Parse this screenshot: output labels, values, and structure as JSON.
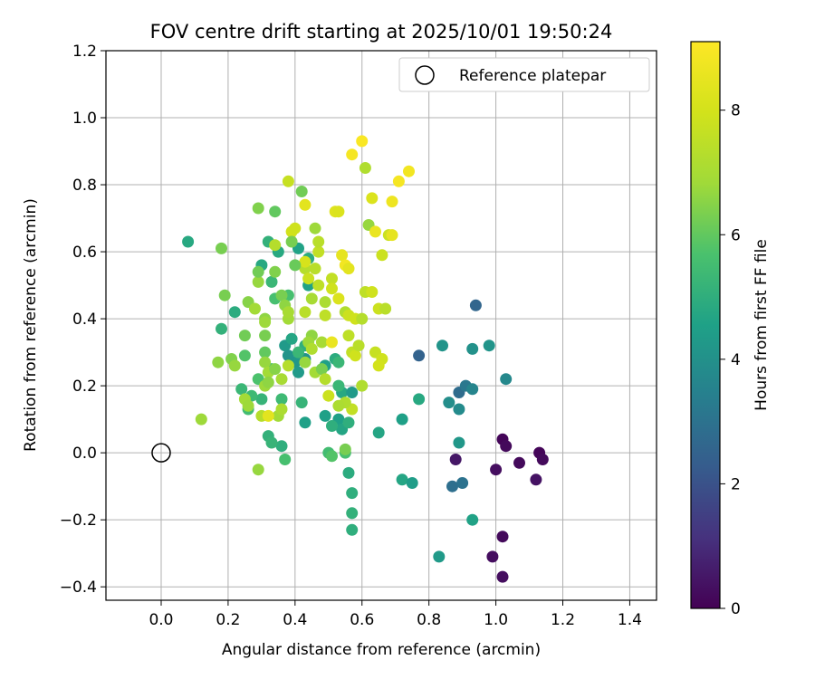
{
  "chart_data": {
    "type": "scatter",
    "title": "FOV centre drift starting at 2025/10/01 19:50:24",
    "xlabel": "Angular distance from reference (arcmin)",
    "ylabel": "Rotation from reference (arcmin)",
    "xlim": [
      -0.165,
      1.48
    ],
    "ylim": [
      -0.44,
      1.2
    ],
    "xticks": [
      "0.0",
      "0.2",
      "0.4",
      "0.6",
      "0.8",
      "1.0",
      "1.2",
      "1.4"
    ],
    "xtick_values": [
      0.0,
      0.2,
      0.4,
      0.6,
      0.8,
      1.0,
      1.2,
      1.4
    ],
    "yticks": [
      "−0.4",
      "−0.2",
      "0.0",
      "0.2",
      "0.4",
      "0.6",
      "0.8",
      "1.0",
      "1.2"
    ],
    "ytick_values": [
      -0.4,
      -0.2,
      0.0,
      0.2,
      0.4,
      0.6,
      0.8,
      1.0,
      1.2
    ],
    "grid": true,
    "legend": {
      "position": "top-right",
      "entries": [
        "Reference platepar"
      ]
    },
    "reference_point": {
      "x": 0.0,
      "y": 0.0
    },
    "colorbar": {
      "label": "Hours from first FF file",
      "range": [
        0,
        9.1
      ],
      "ticks": [
        "0",
        "2",
        "4",
        "6",
        "8"
      ],
      "tick_values": [
        0,
        2,
        4,
        6,
        8
      ],
      "colormap": "viridis"
    },
    "points": [
      [
        1.02,
        0.04,
        0.1
      ],
      [
        1.03,
        0.02,
        0.2
      ],
      [
        1.0,
        -0.05,
        0.3
      ],
      [
        1.07,
        -0.03,
        0.2
      ],
      [
        1.13,
        0.0,
        0.1
      ],
      [
        1.14,
        -0.02,
        0.2
      ],
      [
        1.12,
        -0.08,
        0.4
      ],
      [
        0.99,
        -0.31,
        0.3
      ],
      [
        1.02,
        -0.25,
        0.2
      ],
      [
        1.02,
        -0.37,
        0.3
      ],
      [
        0.88,
        -0.02,
        0.5
      ],
      [
        0.94,
        0.44,
        2.6
      ],
      [
        0.89,
        0.18,
        2.8
      ],
      [
        0.91,
        0.2,
        3.2
      ],
      [
        0.87,
        -0.1,
        2.9
      ],
      [
        0.9,
        -0.09,
        3.0
      ],
      [
        0.77,
        0.29,
        2.5
      ],
      [
        1.03,
        0.22,
        3.7
      ],
      [
        0.93,
        0.31,
        4.0
      ],
      [
        0.98,
        0.32,
        4.1
      ],
      [
        0.84,
        0.32,
        4.1
      ],
      [
        0.86,
        0.15,
        3.9
      ],
      [
        0.89,
        0.13,
        3.8
      ],
      [
        0.93,
        0.19,
        3.6
      ],
      [
        0.89,
        0.03,
        4.2
      ],
      [
        0.93,
        -0.2,
        4.6
      ],
      [
        0.83,
        -0.31,
        4.3
      ],
      [
        0.77,
        0.16,
        4.8
      ],
      [
        0.72,
        0.1,
        4.5
      ],
      [
        0.72,
        -0.08,
        4.7
      ],
      [
        0.75,
        -0.09,
        4.4
      ],
      [
        0.65,
        0.06,
        4.7
      ],
      [
        0.55,
        0.0,
        5.6
      ],
      [
        0.56,
        -0.06,
        4.9
      ],
      [
        0.57,
        -0.12,
        5.0
      ],
      [
        0.57,
        -0.18,
        5.1
      ],
      [
        0.57,
        -0.23,
        5.0
      ],
      [
        0.54,
        0.18,
        4.8
      ],
      [
        0.53,
        0.2,
        5.3
      ],
      [
        0.57,
        0.18,
        4.3
      ],
      [
        0.53,
        0.1,
        4.5
      ],
      [
        0.54,
        0.07,
        4.7
      ],
      [
        0.56,
        0.09,
        5.0
      ],
      [
        0.51,
        0.08,
        5.0
      ],
      [
        0.5,
        0.0,
        5.5
      ],
      [
        0.51,
        -0.01,
        5.8
      ],
      [
        0.49,
        0.11,
        4.5
      ],
      [
        0.43,
        0.09,
        4.5
      ],
      [
        0.42,
        0.15,
        5.2
      ],
      [
        0.4,
        0.27,
        4.2
      ],
      [
        0.41,
        0.24,
        4.3
      ],
      [
        0.43,
        0.28,
        4.0
      ],
      [
        0.38,
        0.29,
        4.1
      ],
      [
        0.37,
        0.32,
        4.3
      ],
      [
        0.39,
        0.34,
        4.7
      ],
      [
        0.43,
        0.32,
        5.0
      ],
      [
        0.41,
        0.3,
        5.3
      ],
      [
        0.44,
        0.5,
        4.6
      ],
      [
        0.44,
        0.58,
        4.9
      ],
      [
        0.41,
        0.61,
        4.6
      ],
      [
        0.35,
        0.6,
        4.8
      ],
      [
        0.32,
        0.63,
        5.1
      ],
      [
        0.33,
        0.51,
        5.3
      ],
      [
        0.3,
        0.56,
        4.8
      ],
      [
        0.38,
        0.47,
        5.6
      ],
      [
        0.49,
        0.26,
        4.5
      ],
      [
        0.52,
        0.28,
        4.9
      ],
      [
        0.53,
        0.27,
        5.3
      ],
      [
        0.36,
        0.02,
        5.0
      ],
      [
        0.32,
        0.05,
        5.1
      ],
      [
        0.33,
        0.03,
        5.2
      ],
      [
        0.37,
        -0.02,
        5.6
      ],
      [
        0.3,
        0.16,
        5.2
      ],
      [
        0.26,
        0.13,
        5.5
      ],
      [
        0.24,
        0.19,
        5.3
      ],
      [
        0.27,
        0.17,
        5.4
      ],
      [
        0.22,
        0.42,
        4.9
      ],
      [
        0.18,
        0.37,
        5.1
      ],
      [
        0.08,
        0.63,
        4.8
      ],
      [
        0.33,
        0.25,
        5.6
      ],
      [
        0.36,
        0.16,
        5.4
      ],
      [
        0.29,
        0.22,
        5.7
      ],
      [
        0.34,
        0.46,
        5.6
      ],
      [
        0.29,
        -0.05,
        6.7
      ],
      [
        0.12,
        0.1,
        6.8
      ],
      [
        0.18,
        0.61,
        6.3
      ],
      [
        0.19,
        0.47,
        6.3
      ],
      [
        0.21,
        0.28,
        6.4
      ],
      [
        0.17,
        0.27,
        6.6
      ],
      [
        0.22,
        0.26,
        6.7
      ],
      [
        0.25,
        0.29,
        5.8
      ],
      [
        0.25,
        0.35,
        6.2
      ],
      [
        0.26,
        0.45,
        6.5
      ],
      [
        0.28,
        0.43,
        6.9
      ],
      [
        0.29,
        0.51,
        6.7
      ],
      [
        0.29,
        0.54,
        6.2
      ],
      [
        0.29,
        0.73,
        6.4
      ],
      [
        0.34,
        0.72,
        6.0
      ],
      [
        0.34,
        0.54,
        6.4
      ],
      [
        0.31,
        0.4,
        6.6
      ],
      [
        0.31,
        0.39,
        6.8
      ],
      [
        0.31,
        0.35,
        6.3
      ],
      [
        0.31,
        0.3,
        6.0
      ],
      [
        0.31,
        0.27,
        6.7
      ],
      [
        0.32,
        0.24,
        6.9
      ],
      [
        0.31,
        0.2,
        6.8
      ],
      [
        0.32,
        0.21,
        6.6
      ],
      [
        0.25,
        0.16,
        6.9
      ],
      [
        0.26,
        0.14,
        6.8
      ],
      [
        0.35,
        0.11,
        6.9
      ],
      [
        0.36,
        0.13,
        7.1
      ],
      [
        0.3,
        0.11,
        7.3
      ],
      [
        0.32,
        0.11,
        8.4
      ],
      [
        0.34,
        0.62,
        7.3
      ],
      [
        0.36,
        0.47,
        6.3
      ],
      [
        0.37,
        0.44,
        6.6
      ],
      [
        0.38,
        0.4,
        6.9
      ],
      [
        0.38,
        0.42,
        7.0
      ],
      [
        0.38,
        0.81,
        7.7
      ],
      [
        0.39,
        0.66,
        8.0
      ],
      [
        0.4,
        0.67,
        7.9
      ],
      [
        0.42,
        0.78,
        6.2
      ],
      [
        0.43,
        0.74,
        8.4
      ],
      [
        0.43,
        0.55,
        7.3
      ],
      [
        0.43,
        0.57,
        8.1
      ],
      [
        0.44,
        0.52,
        7.8
      ],
      [
        0.45,
        0.46,
        7.0
      ],
      [
        0.43,
        0.42,
        7.4
      ],
      [
        0.45,
        0.35,
        6.6
      ],
      [
        0.44,
        0.33,
        6.8
      ],
      [
        0.45,
        0.31,
        7.2
      ],
      [
        0.43,
        0.27,
        6.7
      ],
      [
        0.46,
        0.24,
        6.9
      ],
      [
        0.48,
        0.25,
        6.3
      ],
      [
        0.49,
        0.22,
        7.3
      ],
      [
        0.48,
        0.33,
        7.0
      ],
      [
        0.47,
        0.6,
        7.6
      ],
      [
        0.47,
        0.63,
        7.4
      ],
      [
        0.46,
        0.67,
        6.8
      ],
      [
        0.47,
        0.5,
        7.5
      ],
      [
        0.49,
        0.45,
        7.1
      ],
      [
        0.49,
        0.41,
        7.5
      ],
      [
        0.51,
        0.52,
        7.6
      ],
      [
        0.51,
        0.49,
        7.9
      ],
      [
        0.52,
        0.72,
        8.3
      ],
      [
        0.53,
        0.72,
        8.2
      ],
      [
        0.54,
        0.59,
        8.5
      ],
      [
        0.55,
        0.56,
        8.8
      ],
      [
        0.56,
        0.55,
        8.4
      ],
      [
        0.53,
        0.46,
        8.2
      ],
      [
        0.55,
        0.42,
        7.2
      ],
      [
        0.56,
        0.41,
        7.8
      ],
      [
        0.56,
        0.35,
        7.5
      ],
      [
        0.57,
        0.3,
        7.6
      ],
      [
        0.58,
        0.29,
        7.9
      ],
      [
        0.59,
        0.32,
        7.4
      ],
      [
        0.58,
        0.4,
        7.9
      ],
      [
        0.6,
        0.4,
        7.3
      ],
      [
        0.61,
        0.48,
        7.5
      ],
      [
        0.6,
        0.2,
        7.2
      ],
      [
        0.57,
        0.13,
        7.6
      ],
      [
        0.55,
        0.15,
        7.2
      ],
      [
        0.55,
        0.01,
        6.3
      ],
      [
        0.5,
        0.17,
        7.8
      ],
      [
        0.57,
        0.89,
        8.9
      ],
      [
        0.6,
        0.93,
        9.0
      ],
      [
        0.61,
        0.85,
        7.2
      ],
      [
        0.63,
        0.76,
        8.2
      ],
      [
        0.66,
        0.59,
        7.8
      ],
      [
        0.63,
        0.48,
        7.9
      ],
      [
        0.65,
        0.43,
        7.8
      ],
      [
        0.67,
        0.43,
        7.4
      ],
      [
        0.68,
        0.65,
        7.8
      ],
      [
        0.69,
        0.65,
        8.5
      ],
      [
        0.69,
        0.75,
        8.7
      ],
      [
        0.71,
        0.81,
        8.9
      ],
      [
        0.74,
        0.84,
        8.8
      ],
      [
        0.64,
        0.3,
        7.7
      ],
      [
        0.66,
        0.28,
        7.9
      ],
      [
        0.65,
        0.26,
        8.0
      ],
      [
        0.62,
        0.68,
        6.7
      ],
      [
        0.64,
        0.66,
        8.6
      ],
      [
        0.53,
        0.14,
        7.1
      ],
      [
        0.51,
        0.33,
        8.6
      ],
      [
        0.39,
        0.63,
        6.3
      ],
      [
        0.4,
        0.56,
        6.1
      ],
      [
        0.46,
        0.55,
        7.4
      ],
      [
        0.36,
        0.22,
        7.0
      ],
      [
        0.34,
        0.25,
        6.5
      ],
      [
        0.38,
        0.26,
        7.3
      ]
    ]
  }
}
